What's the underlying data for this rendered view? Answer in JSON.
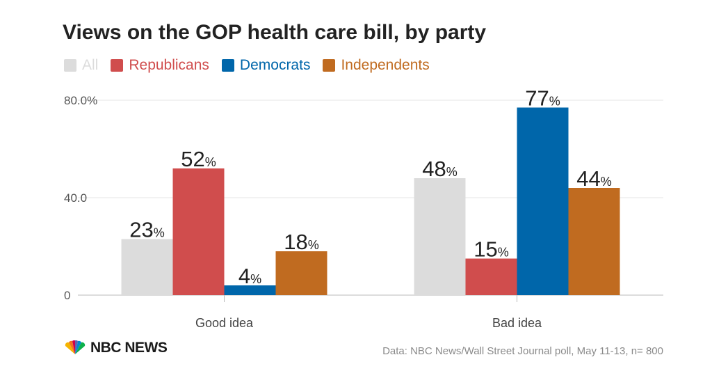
{
  "chart_data": {
    "type": "bar",
    "title": "Views on the GOP health care bill, by party",
    "categories": [
      "Good idea",
      "Bad idea"
    ],
    "series": [
      {
        "name": "All",
        "color": "#dcdcdc",
        "values": [
          23,
          48
        ]
      },
      {
        "name": "Republicans",
        "color": "#d04d4d",
        "values": [
          52,
          15
        ]
      },
      {
        "name": "Democrats",
        "color": "#0066aa",
        "values": [
          4,
          77
        ]
      },
      {
        "name": "Independents",
        "color": "#c06b20",
        "values": [
          18,
          44
        ]
      }
    ],
    "y_ticks": [
      "0",
      "40.0",
      "80.0%"
    ],
    "y_tick_values": [
      0,
      40,
      80
    ],
    "ylim": [
      0,
      80
    ],
    "value_suffix": "%",
    "xlabel": "",
    "ylabel": "",
    "grid": true,
    "legend_position": "top-left"
  },
  "footer": {
    "logo_text": "NBC NEWS",
    "source": "Data: NBC News/Wall Street Journal poll, May 11-13, n= 800"
  }
}
